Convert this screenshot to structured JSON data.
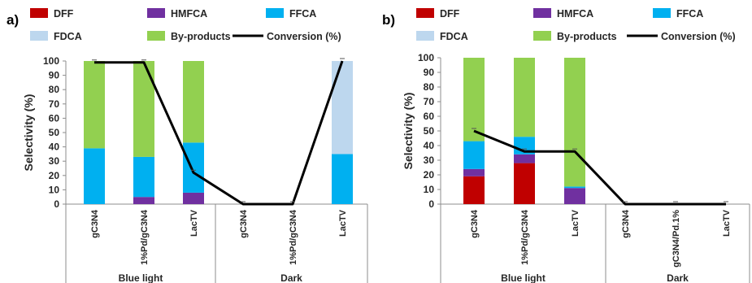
{
  "chart_data": [
    {
      "panel_label": "a)",
      "type": "bar",
      "stacked": true,
      "overlay_line": "Conversion (%)",
      "ylabel": "Selectivity (%)",
      "ylim": [
        0,
        100
      ],
      "y_ticks": [
        0,
        10,
        20,
        30,
        40,
        50,
        60,
        70,
        80,
        90,
        100
      ],
      "legend": [
        "DFF",
        "HMFCA",
        "FFCA",
        "FDCA",
        "By-products",
        "Conversion (%)"
      ],
      "categories": [
        "gC3N4",
        "1%Pd/gC3N4",
        "LacTV",
        "gC3N4",
        "1%Pd/gC3N4",
        "LacTV"
      ],
      "groups": [
        "Blue light",
        "Dark"
      ],
      "series": [
        {
          "name": "DFF",
          "color": "#c00000",
          "values": [
            0,
            0,
            0,
            0,
            0,
            0
          ]
        },
        {
          "name": "HMFCA",
          "color": "#7030a0",
          "values": [
            0,
            5,
            8,
            0,
            0,
            0
          ]
        },
        {
          "name": "FFCA",
          "color": "#00b0f0",
          "values": [
            39,
            28,
            35,
            0,
            0,
            35
          ]
        },
        {
          "name": "FDCA",
          "color": "#bdd7ee",
          "values": [
            0,
            0,
            0,
            0,
            0,
            65
          ]
        },
        {
          "name": "By-products",
          "color": "#92d050",
          "values": [
            61,
            67,
            57,
            0,
            0,
            0
          ]
        }
      ],
      "conversion": [
        99,
        99,
        22,
        0,
        0,
        100
      ],
      "conversion_color": "#000000"
    },
    {
      "panel_label": "b)",
      "type": "bar",
      "stacked": true,
      "overlay_line": "Conversion (%)",
      "ylabel": "Selectivity (%)",
      "ylim": [
        0,
        100
      ],
      "y_ticks": [
        0,
        10,
        20,
        30,
        40,
        50,
        60,
        70,
        80,
        90,
        100
      ],
      "legend": [
        "DFF",
        "HMFCA",
        "FFCA",
        "FDCA",
        "By-products",
        "Conversion (%)"
      ],
      "categories": [
        "gC3N4",
        "1%Pd/gC3N4",
        "LacTV",
        "gC3N4",
        "gC3N4/Pd.1%",
        "LacTV"
      ],
      "groups": [
        "Blue light",
        "Dark"
      ],
      "series": [
        {
          "name": "DFF",
          "color": "#c00000",
          "values": [
            19,
            28,
            0,
            0,
            0,
            0
          ]
        },
        {
          "name": "HMFCA",
          "color": "#7030a0",
          "values": [
            5,
            6,
            11,
            0,
            0,
            0
          ]
        },
        {
          "name": "FFCA",
          "color": "#00b0f0",
          "values": [
            19,
            12,
            1,
            0,
            0,
            0
          ]
        },
        {
          "name": "FDCA",
          "color": "#bdd7ee",
          "values": [
            0,
            0,
            0,
            0,
            0,
            0
          ]
        },
        {
          "name": "By-products",
          "color": "#92d050",
          "values": [
            57,
            54,
            88,
            0,
            0,
            0
          ]
        }
      ],
      "conversion": [
        50,
        36,
        36,
        0,
        0,
        0
      ],
      "conversion_color": "#000000"
    }
  ]
}
